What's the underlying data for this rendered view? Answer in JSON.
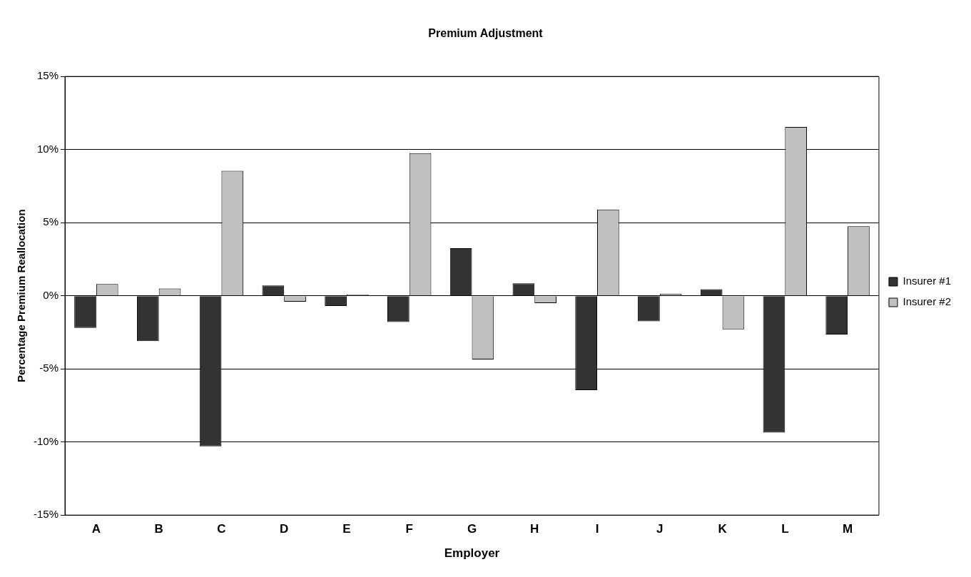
{
  "chart_data": {
    "type": "bar",
    "title": "Premium Adjustment",
    "xlabel": "Employer",
    "ylabel": "Percentage Premium Reallocation",
    "categories": [
      "A",
      "B",
      "C",
      "D",
      "E",
      "F",
      "G",
      "H",
      "I",
      "J",
      "K",
      "L",
      "M"
    ],
    "series": [
      {
        "name": "Insurer #1",
        "color": "#333333",
        "values": [
          -2.2,
          -3.1,
          -10.3,
          0.7,
          -0.7,
          -1.8,
          3.25,
          0.85,
          -6.45,
          -1.75,
          0.45,
          -9.35,
          -2.65
        ]
      },
      {
        "name": "Insurer #2",
        "color": "#c0c0c0",
        "values": [
          0.8,
          0.5,
          8.55,
          -0.4,
          0.1,
          9.75,
          -4.35,
          -0.5,
          5.9,
          0.15,
          -2.3,
          11.55,
          4.75
        ]
      }
    ],
    "ylim": [
      -15,
      15
    ],
    "yticks": [
      {
        "value": -15,
        "label": "-15%"
      },
      {
        "value": -10,
        "label": "-10%"
      },
      {
        "value": -5,
        "label": "-5%"
      },
      {
        "value": 0,
        "label": "0%"
      },
      {
        "value": 5,
        "label": "5%"
      },
      {
        "value": 10,
        "label": "10%"
      },
      {
        "value": 15,
        "label": "15%"
      }
    ],
    "grid": "y",
    "legend": "right"
  }
}
